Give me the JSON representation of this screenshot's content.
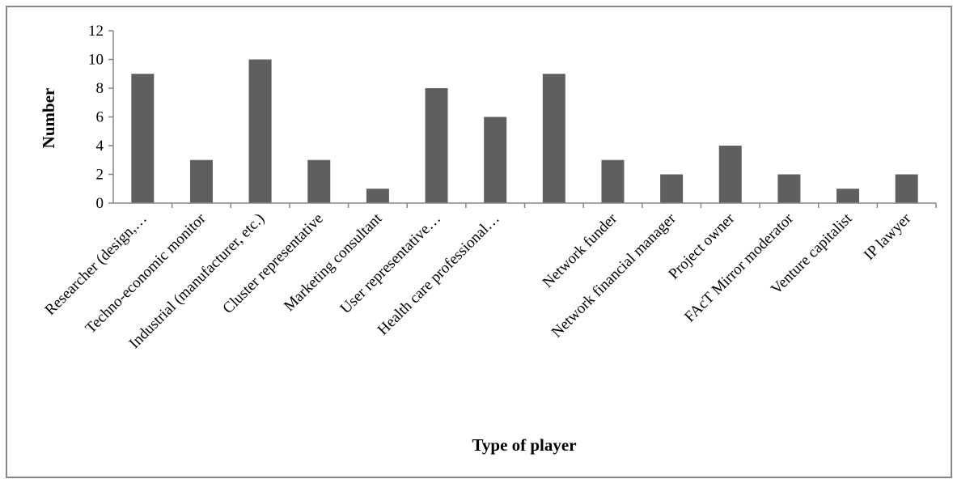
{
  "chart_data": {
    "type": "bar",
    "title": "",
    "xlabel": "Type of player",
    "ylabel": "Number",
    "ylim": [
      0,
      12
    ],
    "yticks": [
      0,
      2,
      4,
      6,
      8,
      10,
      12
    ],
    "grid": false,
    "legend": "none",
    "categories": [
      "Researcher (design,…",
      "Techno-economic monitor",
      "Industrial (manufacturer, etc.)",
      "Cluster representative",
      "Marketing consultant",
      "User representative…",
      "Health care professional…",
      "",
      "Network funder",
      "Network financial manager",
      "Project owner",
      "FAcT Mirror moderator",
      "Venture capitalist",
      "IP lawyer"
    ],
    "values": [
      9,
      3,
      10,
      3,
      1,
      8,
      6,
      9,
      3,
      2,
      4,
      2,
      1,
      2
    ],
    "colors": {
      "bar": "#5f5f5f",
      "axis": "#868686",
      "frame": "#868686"
    }
  }
}
